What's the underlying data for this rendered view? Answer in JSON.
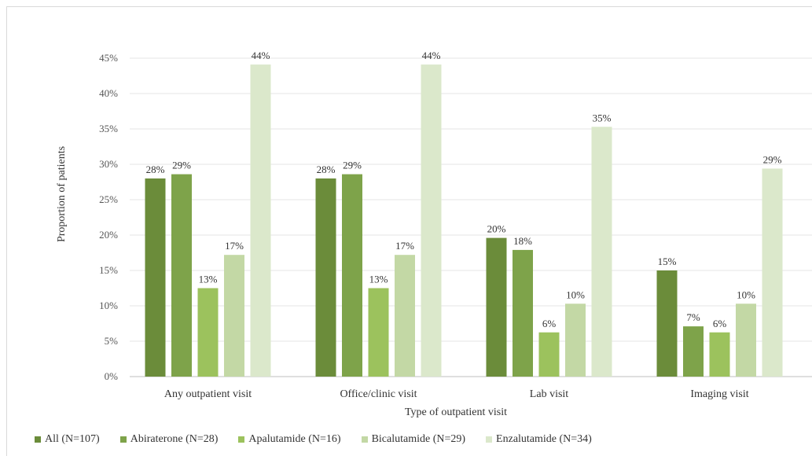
{
  "chart_data": {
    "type": "bar",
    "xlabel": "Type of outpatient visit",
    "ylabel": "Proportion of patients",
    "ylim": [
      0,
      45
    ],
    "yticks": [
      "0%",
      "5%",
      "10%",
      "15%",
      "20%",
      "25%",
      "30%",
      "35%",
      "40%",
      "45%"
    ],
    "grid": true,
    "legend_position": "bottom",
    "categories": [
      "Any outpatient visit",
      "Office/clinic visit",
      "Lab visit",
      "Imaging visit"
    ],
    "series": [
      {
        "name": "All (N=107)",
        "color": "#6b8c3a",
        "values": [
          28,
          28,
          19.6,
          15
        ],
        "labels": [
          "28%",
          "28%",
          "20%",
          "15%"
        ]
      },
      {
        "name": "Abiraterone (N=28)",
        "color": "#7ea34a",
        "values": [
          28.6,
          28.6,
          17.9,
          7.1
        ],
        "labels": [
          "29%",
          "29%",
          "18%",
          "7%"
        ]
      },
      {
        "name": "Apalutamide (N=16)",
        "color": "#9cc25d",
        "values": [
          12.5,
          12.5,
          6.25,
          6.25
        ],
        "labels": [
          "13%",
          "13%",
          "6%",
          "6%"
        ]
      },
      {
        "name": "Bicalutamide (N=29)",
        "color": "#c3d8a5",
        "values": [
          17.2,
          17.2,
          10.3,
          10.3
        ],
        "labels": [
          "17%",
          "17%",
          "10%",
          "10%"
        ]
      },
      {
        "name": "Enzalutamide (N=34)",
        "color": "#dbe8cb",
        "values": [
          44.1,
          44.1,
          35.3,
          29.4
        ],
        "labels": [
          "44%",
          "44%",
          "35%",
          "29%"
        ]
      }
    ]
  }
}
